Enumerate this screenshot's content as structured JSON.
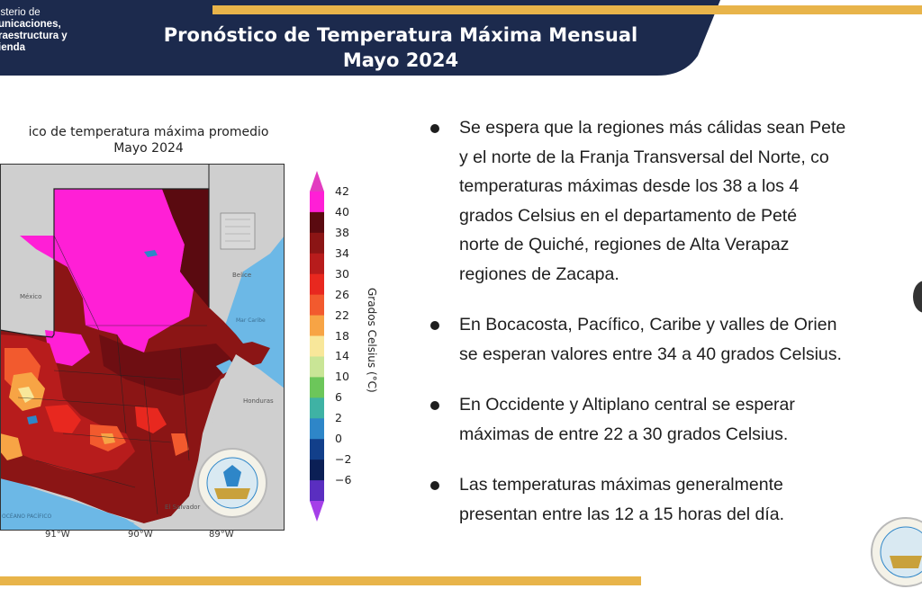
{
  "header": {
    "ministry_lines": [
      "isterio de",
      "unicaciones,",
      "raestructura y",
      "ienda"
    ],
    "title_line1": "Pronóstico de Temperatura Máxima Mensual",
    "title_line2": "Mayo 2024",
    "colors": {
      "navy": "#1c2a4d",
      "gold": "#e8b44a"
    }
  },
  "map": {
    "title_line1": "ico de temperatura máxima promedio",
    "title_line2": "Mayo 2024",
    "labels": {
      "mexico": "México",
      "belize": "Belice",
      "honduras": "Honduras",
      "el_salvador": "El Salvador",
      "pacific": "OCÉANO PACÍFICO",
      "caribbean": "Mar Caribe"
    },
    "lon_ticks": [
      "91°W",
      "90°W",
      "89°W"
    ],
    "seal_text": "INSIVUMEH"
  },
  "colorbar": {
    "title": "Grados Celsius (°C)",
    "ticks": [
      "42",
      "40",
      "38",
      "34",
      "30",
      "26",
      "22",
      "18",
      "14",
      "10",
      "6",
      "2",
      "0",
      "−2",
      "−6"
    ],
    "colors": [
      "#e23cc0",
      "#ff1fd6",
      "#5a0a10",
      "#8b1515",
      "#b71c1c",
      "#e8281f",
      "#f25a2e",
      "#f7a445",
      "#f8e79a",
      "#c9e596",
      "#6cc65a",
      "#3fb2a4",
      "#2e86c8",
      "#123f8a",
      "#0b1f55",
      "#5a2ec0",
      "#a540e8"
    ]
  },
  "bullets": [
    {
      "lines": [
        "Se espera que la regiones más cálidas sean Pete",
        "y el norte de la Franja Transversal del Norte, co",
        "temperaturas máximas desde los 38 a los 4",
        "grados Celsius en el departamento de Peté",
        "norte de Quiché, regiones de Alta Verapaz",
        "regiones de Zacapa."
      ]
    },
    {
      "lines": [
        "En Bocacosta, Pacífico, Caribe y valles de Orien",
        "se esperan valores entre 34 a 40 grados Celsius."
      ]
    },
    {
      "lines": [
        "En Occidente y Altiplano central se esperar",
        "máximas de entre 22 a 30 grados Celsius."
      ]
    },
    {
      "lines": [
        "Las temperaturas máximas generalmente",
        "presentan entre las 12 a 15 horas del día."
      ]
    }
  ]
}
